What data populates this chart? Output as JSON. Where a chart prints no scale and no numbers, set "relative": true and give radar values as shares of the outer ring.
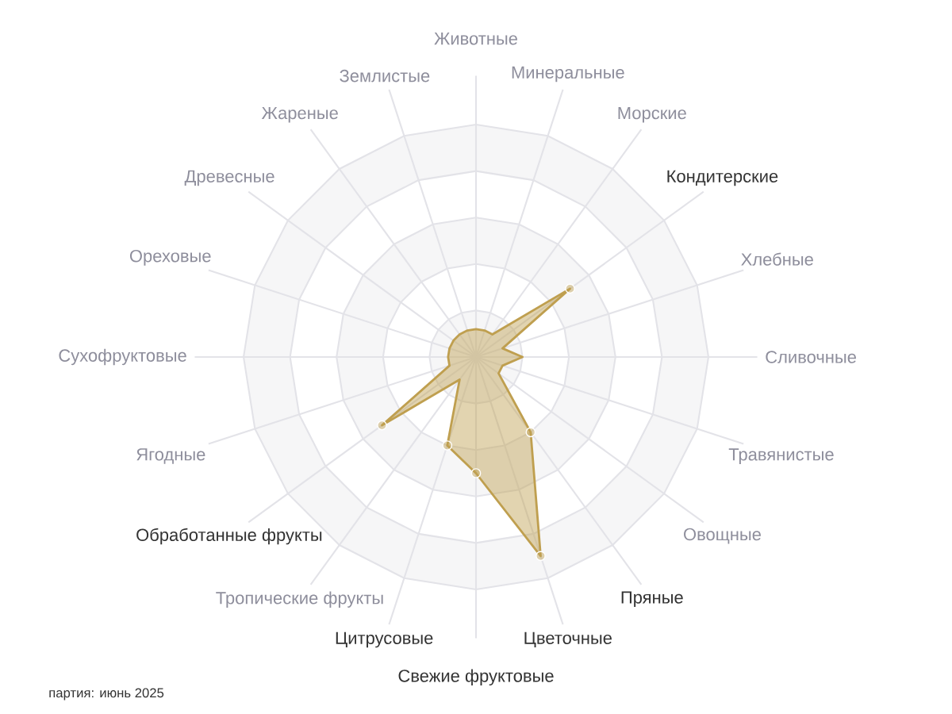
{
  "chart_data": {
    "type": "radar",
    "relative": true,
    "grid": true,
    "marker": "circle",
    "line_style": "solid",
    "categories": [
      "Животные",
      "Минеральные",
      "Морские",
      "Кондитерские",
      "Хлебные",
      "Сливочные",
      "Травянистые",
      "Овощные",
      "Пряные",
      "Цветочные",
      "Свежие фруктовые",
      "Цитрусовые",
      "Тропические фрукты",
      "Обработанные фрукты",
      "Ягодные",
      "Сухофруктовые",
      "Ореховые",
      "Древесные",
      "Жареные",
      "Землистые"
    ],
    "series": [
      {
        "color": "#bf9f4f",
        "values": [
          0.12,
          0.12,
          0.12,
          0.5,
          0.12,
          0.2,
          0.12,
          0.12,
          0.4,
          0.9,
          0.5,
          0.4,
          0.12,
          0.5,
          0.12,
          0.12,
          0.12,
          0.12,
          0.12,
          0.12
        ]
      }
    ],
    "annotations": [
      "партия: июнь 2025"
    ]
  }
}
